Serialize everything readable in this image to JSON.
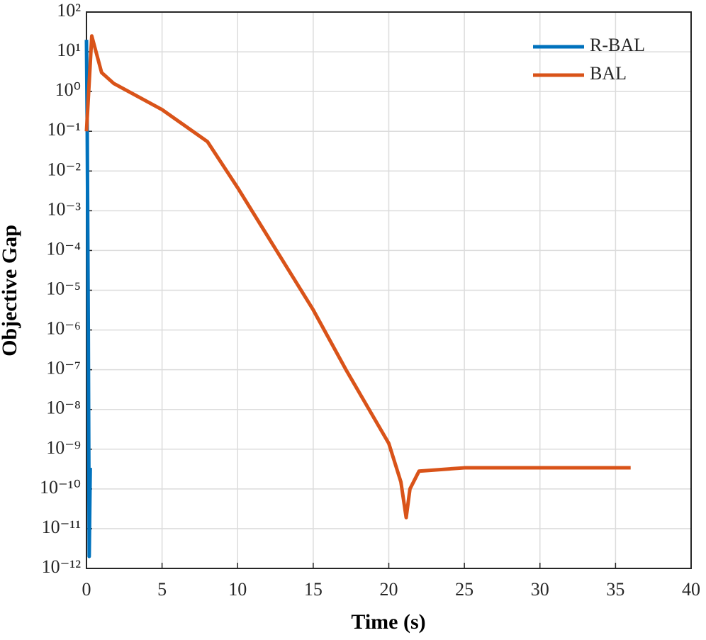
{
  "chart_data": {
    "type": "line",
    "xlabel": "Time (s)",
    "ylabel": "Objective Gap",
    "xlim": [
      0,
      40
    ],
    "xticks": [
      0,
      5,
      10,
      15,
      20,
      25,
      30,
      35,
      40
    ],
    "ylim": [
      1e-12,
      100
    ],
    "yscale": "log",
    "yticks": [
      {
        "value": 1e-12,
        "label": "10⁻¹²"
      },
      {
        "value": 1e-11,
        "label": "10⁻¹¹"
      },
      {
        "value": 1e-10,
        "label": "10⁻¹⁰"
      },
      {
        "value": 1e-09,
        "label": "10⁻⁹"
      },
      {
        "value": 1e-08,
        "label": "10⁻⁸"
      },
      {
        "value": 1e-07,
        "label": "10⁻⁷"
      },
      {
        "value": 1e-06,
        "label": "10⁻⁶"
      },
      {
        "value": 1e-05,
        "label": "10⁻⁵"
      },
      {
        "value": 0.0001,
        "label": "10⁻⁴"
      },
      {
        "value": 0.001,
        "label": "10⁻³"
      },
      {
        "value": 0.01,
        "label": "10⁻²"
      },
      {
        "value": 0.1,
        "label": "10⁻¹"
      },
      {
        "value": 1,
        "label": "10⁰"
      },
      {
        "value": 10,
        "label": "10¹"
      },
      {
        "value": 100,
        "label": "10²"
      }
    ],
    "grid": true,
    "legend": "upper right",
    "series": [
      {
        "name": "R-BAL",
        "color": "#0072bd",
        "x": [
          0,
          0.05,
          0.12,
          0.18,
          0.25
        ],
        "values": [
          20,
          0.1,
          1e-06,
          2e-12,
          3.4e-10
        ]
      },
      {
        "name": "BAL",
        "color": "#d95319",
        "x": [
          0,
          0.35,
          1,
          1.8,
          5,
          8,
          10,
          15,
          17.2,
          20,
          20.8,
          21.15,
          21.4,
          22,
          25,
          36
        ],
        "values": [
          0.1,
          25,
          3,
          1.6,
          0.35,
          0.055,
          0.0038,
          3.2e-06,
          9.5e-08,
          1.4e-09,
          1.5e-10,
          1.9e-11,
          1e-10,
          2.8e-10,
          3.4e-10,
          3.4e-10
        ]
      }
    ]
  }
}
